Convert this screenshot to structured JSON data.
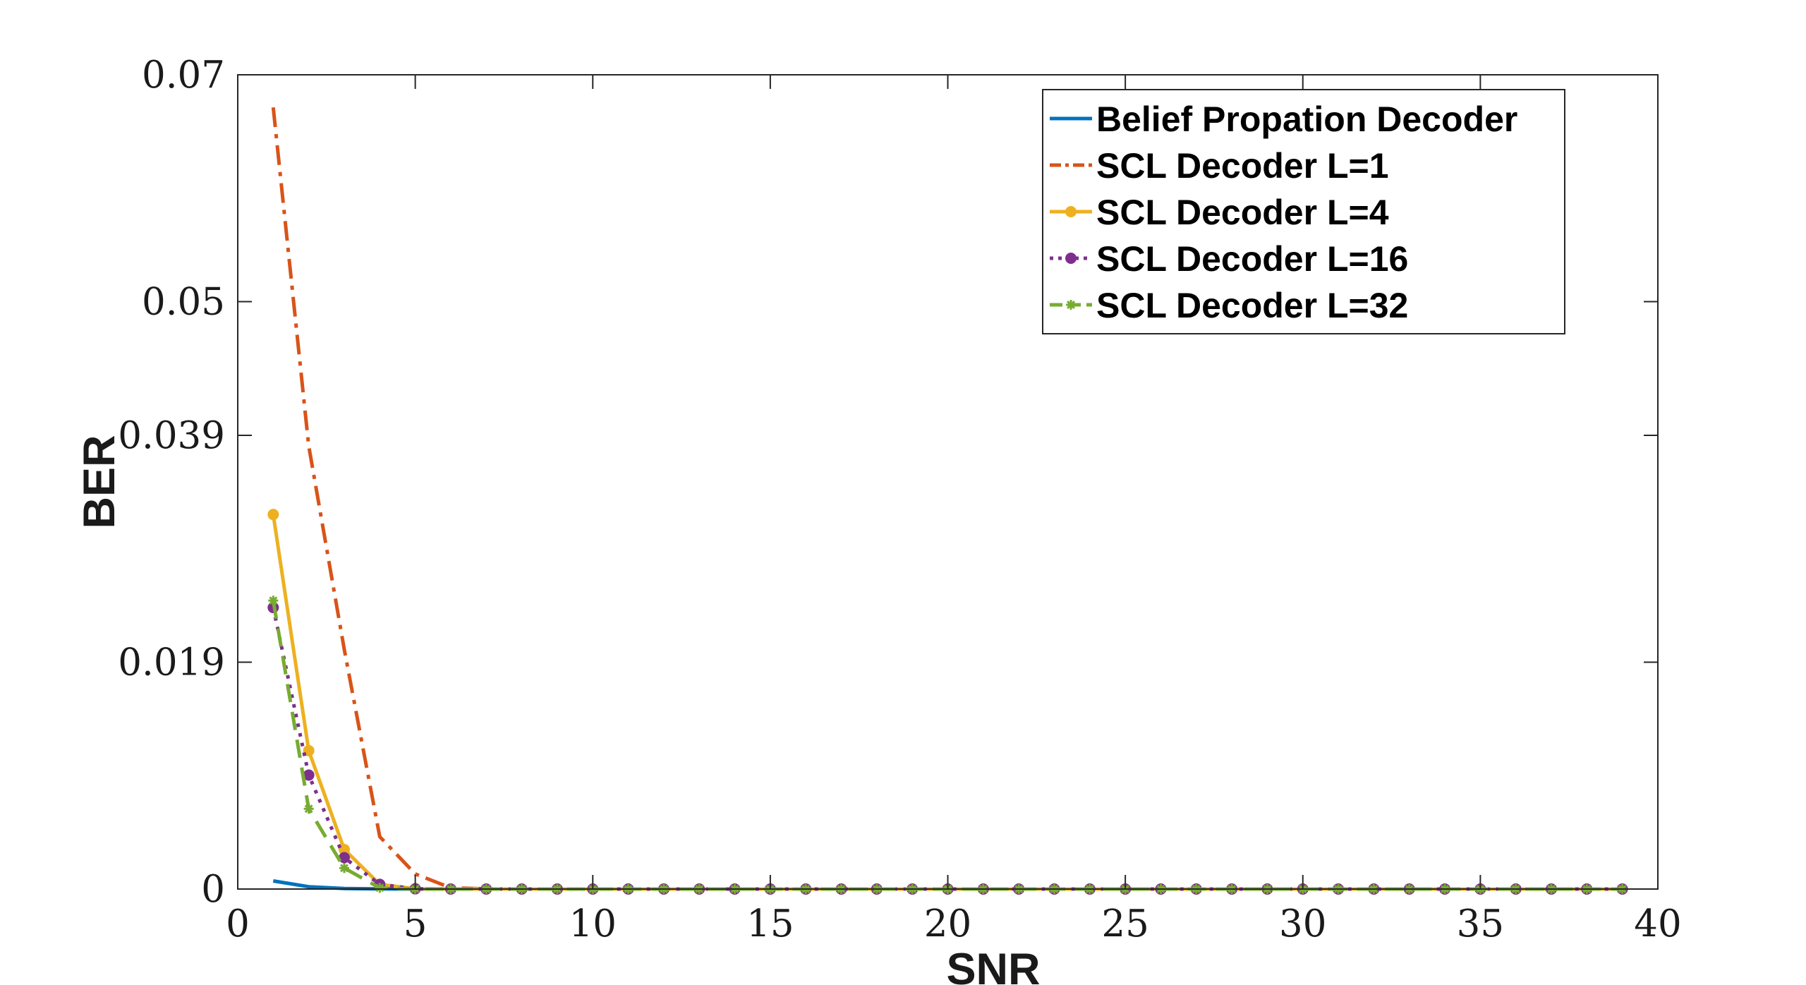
{
  "chart_data": {
    "type": "line",
    "xlabel": "SNR",
    "ylabel": "BER",
    "xlim": [
      0,
      40
    ],
    "ylim": [
      0,
      0.07
    ],
    "xticks": [
      0,
      5,
      10,
      15,
      20,
      25,
      30,
      35,
      40
    ],
    "xtick_labels": [
      "0",
      "5",
      "10",
      "15",
      "20",
      "25",
      "30",
      "35",
      "40"
    ],
    "yticks": [
      0,
      0.0195,
      0.039,
      0.0505,
      0.07
    ],
    "ytick_labels": [
      "0",
      "0.019",
      "0.039",
      "0.05",
      "0.07"
    ],
    "grid": false,
    "legend_position": "top-right",
    "series": [
      {
        "name": "Belief Propation Decoder",
        "color": "#0072BD",
        "line_style": "solid",
        "marker": "none",
        "x": [
          1,
          2,
          3,
          4,
          5,
          6,
          7,
          8,
          9,
          10,
          11,
          12,
          13,
          14,
          15,
          16,
          17,
          18,
          19,
          20,
          21,
          22,
          23,
          24,
          25,
          26,
          27,
          28,
          29,
          30,
          31,
          32,
          33,
          34,
          35,
          36,
          37,
          38,
          39
        ],
        "values": [
          0.0007,
          0.0002,
          5e-05,
          1e-05,
          0,
          0,
          0,
          0,
          0,
          0,
          0,
          0,
          0,
          0,
          0,
          0,
          0,
          0,
          0,
          0,
          0,
          0,
          0,
          0,
          0,
          0,
          0,
          0,
          0,
          0,
          0,
          0,
          0,
          0,
          0,
          0,
          0,
          0,
          0
        ]
      },
      {
        "name": "SCL Decoder L=1",
        "color": "#D95319",
        "line_style": "dashdot",
        "marker": "none",
        "x": [
          1,
          2,
          3,
          4,
          5,
          6,
          7,
          8,
          9,
          10,
          11,
          12,
          13,
          14,
          15,
          16,
          17,
          18,
          19,
          20,
          21,
          22,
          23,
          24,
          25,
          26,
          27,
          28,
          29,
          30,
          31,
          32,
          33,
          34,
          35,
          36,
          37,
          38,
          39
        ],
        "values": [
          0.0672,
          0.0381,
          0.0206,
          0.0045,
          0.0013,
          0.0001,
          2e-05,
          0,
          0,
          0,
          0,
          0,
          0,
          0,
          0,
          0,
          0,
          0,
          0,
          0,
          0,
          0,
          0,
          0,
          0,
          0,
          0,
          0,
          0,
          0,
          0,
          0,
          0,
          0,
          0,
          0,
          0,
          0,
          0
        ]
      },
      {
        "name": "SCL Decoder L=4",
        "color": "#EDB120",
        "line_style": "solid",
        "marker": "circle",
        "x": [
          1,
          2,
          3,
          4,
          5,
          6,
          7,
          8,
          9,
          10,
          11,
          12,
          13,
          14,
          15,
          16,
          17,
          18,
          19,
          20,
          21,
          22,
          23,
          24,
          25,
          26,
          27,
          28,
          29,
          30,
          31,
          32,
          33,
          34,
          35,
          36,
          37,
          38,
          39
        ],
        "values": [
          0.0322,
          0.0119,
          0.0034,
          0.0004,
          3e-05,
          0,
          0,
          0,
          0,
          0,
          0,
          0,
          0,
          0,
          0,
          0,
          0,
          0,
          0,
          0,
          0,
          0,
          0,
          0,
          0,
          0,
          0,
          0,
          0,
          0,
          0,
          0,
          0,
          0,
          0,
          0,
          0,
          0,
          0
        ]
      },
      {
        "name": "SCL Decoder L=16",
        "color": "#7E2F8E",
        "line_style": "dotted",
        "marker": "circle",
        "x": [
          1,
          2,
          3,
          4,
          5,
          6,
          7,
          8,
          9,
          10,
          11,
          12,
          13,
          14,
          15,
          16,
          17,
          18,
          19,
          20,
          21,
          22,
          23,
          24,
          25,
          26,
          27,
          28,
          29,
          30,
          31,
          32,
          33,
          34,
          35,
          36,
          37,
          38,
          39
        ],
        "values": [
          0.0242,
          0.0098,
          0.0027,
          0.0004,
          2e-05,
          0,
          0,
          0,
          0,
          0,
          0,
          0,
          0,
          0,
          0,
          0,
          0,
          0,
          0,
          0,
          0,
          0,
          0,
          0,
          0,
          0,
          0,
          0,
          0,
          0,
          0,
          0,
          0,
          0,
          0,
          0,
          0,
          0,
          0
        ]
      },
      {
        "name": "SCL Decoder L=32",
        "color": "#77AC30",
        "line_style": "dashed",
        "marker": "asterisk",
        "x": [
          1,
          2,
          3,
          4,
          5,
          6,
          7,
          8,
          9,
          10,
          11,
          12,
          13,
          14,
          15,
          16,
          17,
          18,
          19,
          20,
          21,
          22,
          23,
          24,
          25,
          26,
          27,
          28,
          29,
          30,
          31,
          32,
          33,
          34,
          35,
          36,
          37,
          38,
          39
        ],
        "values": [
          0.0248,
          0.0069,
          0.0018,
          0.0001,
          1e-05,
          0,
          0,
          0,
          0,
          0,
          0,
          0,
          0,
          0,
          0,
          0,
          0,
          0,
          0,
          0,
          0,
          0,
          0,
          0,
          0,
          0,
          0,
          0,
          0,
          0,
          0,
          0,
          0,
          0,
          0,
          0,
          0,
          0,
          0
        ]
      }
    ]
  }
}
